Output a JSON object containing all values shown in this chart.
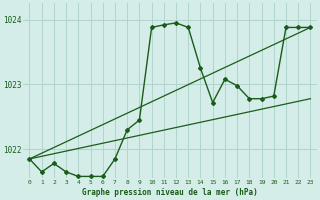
{
  "bg_color": "#d4ede8",
  "grid_color": "#b0d4cc",
  "line_color": "#1a5c1a",
  "xlabel": "Graphe pression niveau de la mer (hPa)",
  "ylim": [
    1021.55,
    1024.25
  ],
  "xlim": [
    -0.5,
    23.5
  ],
  "yticks": [
    1022,
    1023,
    1024
  ],
  "xticks": [
    0,
    1,
    2,
    3,
    4,
    5,
    6,
    7,
    8,
    9,
    10,
    11,
    12,
    13,
    14,
    15,
    16,
    17,
    18,
    19,
    20,
    21,
    22,
    23
  ],
  "series1_x": [
    0,
    1,
    2,
    3,
    4,
    5,
    6,
    7,
    8,
    9,
    10,
    11,
    12,
    13,
    14,
    15,
    16,
    17,
    18,
    19,
    20,
    21,
    22,
    23
  ],
  "series1_y": [
    1021.85,
    1021.65,
    1021.78,
    1021.65,
    1021.58,
    1021.58,
    1021.58,
    1021.85,
    1022.3,
    1022.45,
    1023.88,
    1023.92,
    1023.95,
    1023.88,
    1023.25,
    1022.72,
    1023.08,
    1022.98,
    1022.78,
    1022.78,
    1022.82,
    1023.88,
    1023.88,
    1023.88
  ],
  "trend1_x": [
    0,
    23
  ],
  "trend1_y": [
    1021.85,
    1023.88
  ],
  "trend2_x": [
    0,
    23
  ],
  "trend2_y": [
    1021.85,
    1022.78
  ]
}
